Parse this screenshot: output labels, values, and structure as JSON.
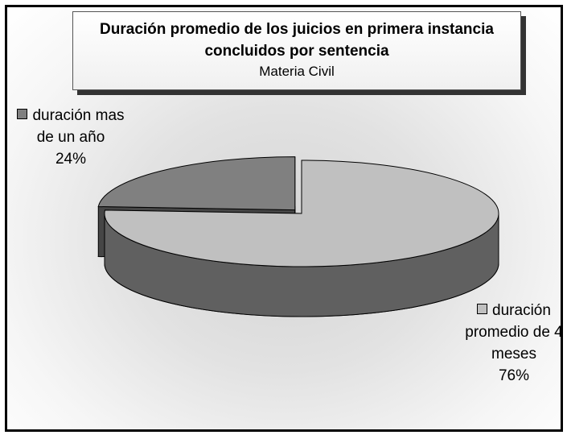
{
  "chart_data": {
    "type": "pie",
    "title": "Duración promedio de los juicios en primera instancia concluidos por sentencia",
    "subtitle": "Materia Civil",
    "categories": [
      "duración promedio de 4 meses",
      "duración mas de un año"
    ],
    "values": [
      76,
      24
    ],
    "value_labels": [
      "76%",
      "24%"
    ],
    "colors": [
      "#c0c0c0",
      "#808080"
    ]
  }
}
